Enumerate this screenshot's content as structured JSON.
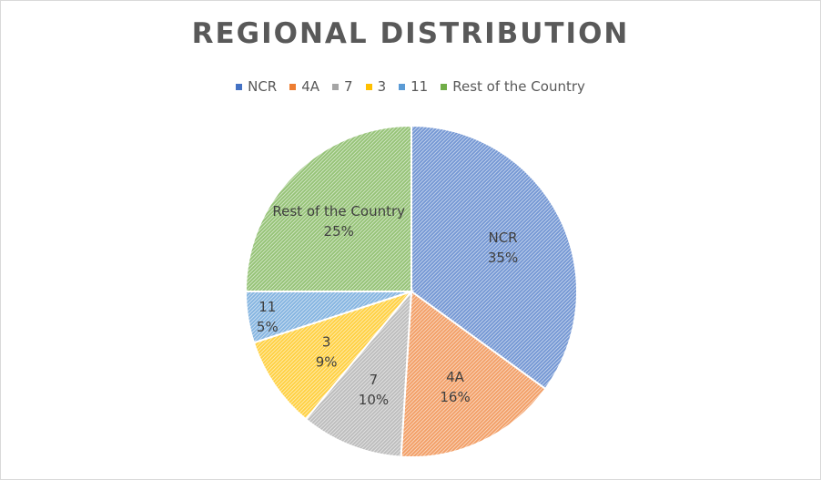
{
  "chart_data": {
    "type": "pie",
    "title": "REGIONAL DISTRIBUTION",
    "categories": [
      "NCR",
      "4A",
      "7",
      "3",
      "11",
      "Rest of the Country"
    ],
    "values": [
      35,
      16,
      10,
      9,
      5,
      25
    ],
    "value_labels": [
      "35%",
      "16%",
      "10%",
      "9%",
      "5%",
      "25%"
    ],
    "colors": [
      "#4472c4",
      "#ed7d31",
      "#a5a5a5",
      "#ffc000",
      "#5b9bd5",
      "#70ad47"
    ],
    "legend_position": "top",
    "pattern": "diagonal-hatch"
  }
}
